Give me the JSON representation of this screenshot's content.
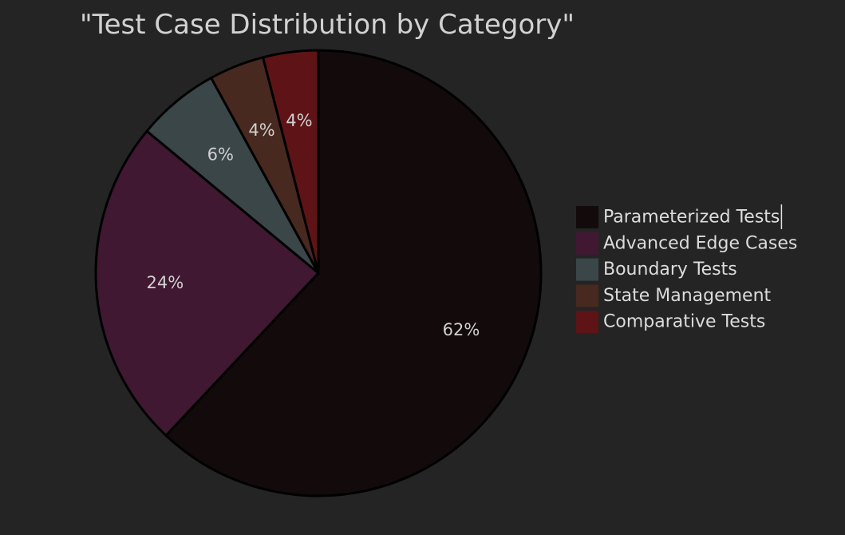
{
  "chart_data": {
    "type": "pie",
    "title": "\"Test Case Distribution by Category\"",
    "start_angle_deg": 0,
    "direction": "clockwise",
    "slices": [
      {
        "label": "Parameterized Tests",
        "value": 62,
        "display": "62%",
        "color": "#120a0b"
      },
      {
        "label": "Advanced Edge Cases",
        "value": 24,
        "display": "24%",
        "color": "#401832"
      },
      {
        "label": "Boundary Tests",
        "value": 6,
        "display": "6%",
        "color": "#3b4649"
      },
      {
        "label": "State Management",
        "value": 4,
        "display": "4%",
        "color": "#47291f"
      },
      {
        "label": "Comparative Tests",
        "value": 4,
        "display": "4%",
        "color": "#5e1416"
      }
    ],
    "legend_placement": "right",
    "background_color": "#242424",
    "slice_border_color": "#000000"
  }
}
